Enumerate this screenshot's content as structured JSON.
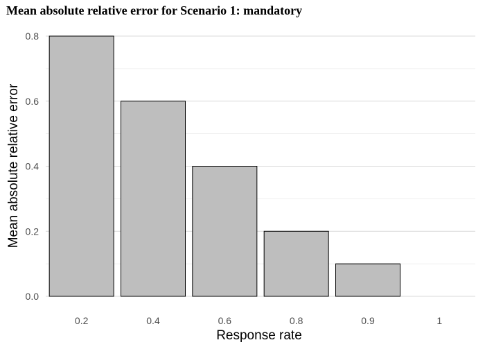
{
  "chart_data": {
    "type": "bar",
    "title": "Mean absolute relative error for Scenario 1: mandatory",
    "xlabel": "Response rate",
    "ylabel": "Mean absolute relative error",
    "categories": [
      "0.2",
      "0.4",
      "0.6",
      "0.8",
      "0.9",
      "1"
    ],
    "values": [
      0.8,
      0.6,
      0.4,
      0.2,
      0.1,
      0.0
    ],
    "yticks": [
      "0.0",
      "0.2",
      "0.4",
      "0.6",
      "0.8"
    ],
    "ylim": [
      0,
      0.8
    ],
    "grid": true,
    "legend": "none",
    "colors": {
      "bar_fill": "#bebebe",
      "bar_stroke": "#000000",
      "grid": "#d9d9d9",
      "tick_text": "#4d4d4d"
    }
  }
}
